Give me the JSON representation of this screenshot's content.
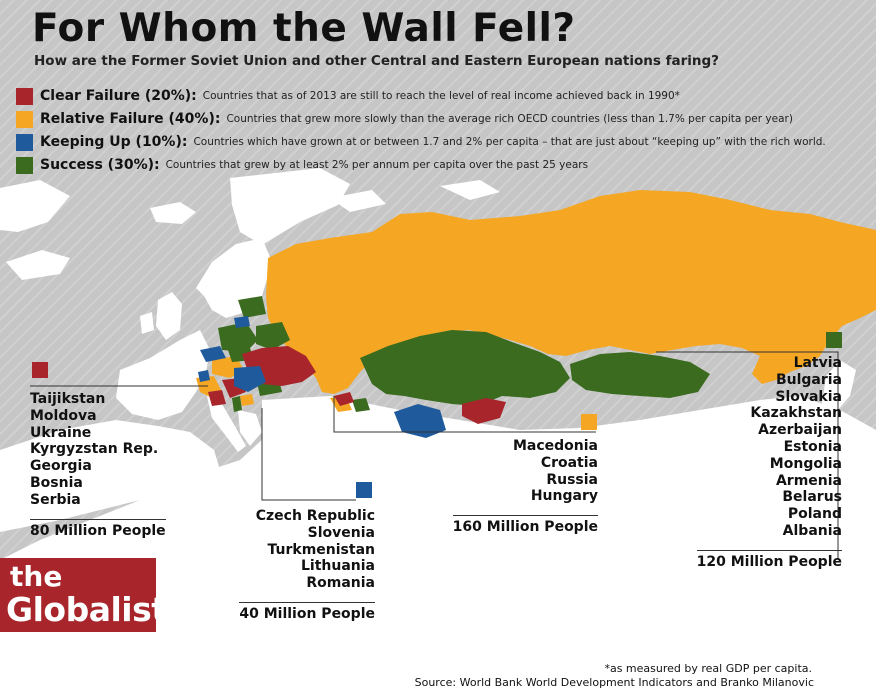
{
  "title": "For Whom the Wall Fell?",
  "subtitle": "How are the Former Soviet Union and other Central and Eastern European nations faring?",
  "colors": {
    "clear_failure": "#a8262b",
    "relative_failure": "#f5a623",
    "keeping_up": "#1f5b9c",
    "success": "#3a6b1f",
    "land": "#ffffff",
    "background": "#c6c6c6"
  },
  "legend": [
    {
      "label": "Clear Failure (20%):",
      "desc": "Countries that as of 2013 are still to reach the level of real income achieved back in 1990*",
      "color": "#a8262b"
    },
    {
      "label": "Relative Failure (40%):",
      "desc": "Countries that grew more slowly than the average rich OECD countries (less than 1.7% per capita per year)",
      "color": "#f5a623"
    },
    {
      "label": "Keeping Up (10%):",
      "desc": "Countries which have grown at or between 1.7 and 2% per capita – that are just about “keeping up” with the rich world.",
      "color": "#1f5b9c"
    },
    {
      "label": "Success (30%):",
      "desc": "Countries that grew by at least 2% per annum per capita over the past  25 years",
      "color": "#3a6b1f"
    }
  ],
  "groups": {
    "clear_failure": {
      "countries": [
        "Taijikstan",
        "Moldova",
        "Ukraine",
        "Kyrgyzstan Rep.",
        "Georgia",
        "Bosnia",
        "Serbia"
      ],
      "population": "80 Million People"
    },
    "keeping_up": {
      "countries": [
        "Czech Republic",
        "Slovenia",
        "Turkmenistan",
        "Lithuania",
        "Romania"
      ],
      "population": "40 Million People"
    },
    "relative_failure": {
      "countries": [
        "Macedonia",
        "Croatia",
        "Russia",
        "Hungary"
      ],
      "population": "160 Million People"
    },
    "success": {
      "countries": [
        "Latvia",
        "Bulgaria",
        "Slovakia",
        "Kazakhstan",
        "Azerbaijan",
        "Estonia",
        "Mongolia",
        "Armenia",
        "Belarus",
        "Poland",
        "Albania"
      ],
      "population": "120 Million People"
    }
  },
  "logo": {
    "line1": "the",
    "line2": "Globalist"
  },
  "footnote": "*as measured by real GDP per capita.",
  "source": "Source: World Bank World Development Indicators and Branko Milanovic"
}
